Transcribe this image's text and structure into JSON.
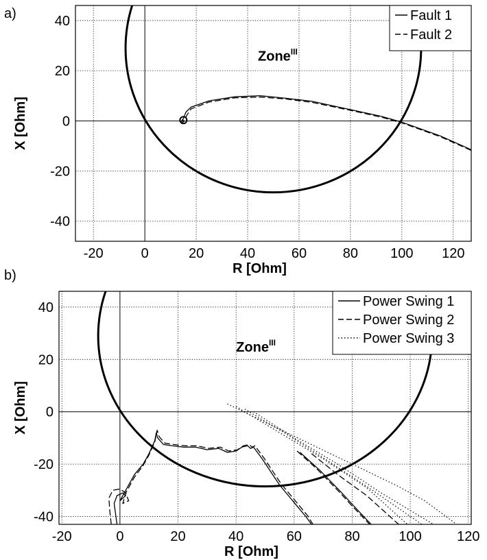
{
  "chart_data": [
    {
      "panel_label": "a)",
      "type": "line",
      "xlabel": "R [Ohm]",
      "ylabel": "X [Ohm]",
      "xlim": [
        -27,
        127
      ],
      "ylim": [
        -48,
        46
      ],
      "xticks": [
        -20,
        0,
        20,
        40,
        60,
        80,
        100,
        120
      ],
      "yticks": [
        -40,
        -20,
        0,
        20,
        40
      ],
      "grid": true,
      "legend_position": "top-right",
      "zone_label": {
        "text": "Zone",
        "superscript": "III",
        "x": 44,
        "y": 24
      },
      "zone_circle": {
        "center_r": 50,
        "center_x": 29,
        "radius": 57.5
      },
      "series": [
        {
          "name": "Fault 1",
          "style": "solid",
          "x": [
            127,
            115,
            100,
            92,
            80,
            65,
            55,
            45,
            35,
            25,
            18,
            16,
            15,
            14,
            15
          ],
          "y": [
            -11.5,
            -6,
            -0.5,
            1.8,
            4.5,
            7.8,
            9,
            10,
            9.6,
            8,
            5.5,
            3.5,
            1,
            -0.5,
            0.5
          ]
        },
        {
          "name": "Fault 2",
          "style": "dashed",
          "x": [
            127,
            115,
            100,
            92,
            80,
            65,
            55,
            45,
            35,
            25,
            18,
            16.5,
            15.5,
            14.5,
            15.5
          ],
          "y": [
            -11.8,
            -6.3,
            -0.8,
            1.5,
            4.2,
            7.4,
            8.7,
            9.5,
            9.2,
            7.5,
            4.8,
            2.5,
            0.5,
            -0.8,
            0
          ]
        }
      ]
    },
    {
      "panel_label": "b)",
      "type": "line",
      "xlabel": "R [Ohm]",
      "ylabel": "X [Ohm]",
      "xlim": [
        -21,
        121
      ],
      "ylim": [
        -43,
        46
      ],
      "xticks": [
        -20,
        0,
        20,
        40,
        60,
        80,
        100,
        120
      ],
      "yticks": [
        -40,
        -20,
        0,
        20,
        40
      ],
      "grid": true,
      "legend_position": "top-right",
      "zone_label": {
        "text": "Zone",
        "superscript": "III",
        "x": 40,
        "y": 23
      },
      "zone_circle": {
        "center_r": 50,
        "center_x": 29,
        "radius": 57.5
      },
      "series": [
        {
          "name": "Power Swing 1",
          "style": "solid",
          "x": [
            -1,
            -1.5,
            -2,
            -1,
            1,
            2,
            1,
            0,
            2,
            5,
            8,
            10,
            12,
            12.5,
            13,
            15,
            18,
            22,
            26,
            30,
            34,
            37,
            40,
            42,
            44,
            45,
            46,
            47,
            49,
            52,
            55,
            58,
            61,
            64,
            66
          ],
          "y": [
            -43,
            -39,
            -35,
            -32,
            -31,
            -32,
            -33,
            -34,
            -30,
            -24,
            -20,
            -16,
            -11,
            -8,
            -10,
            -12.5,
            -13,
            -13.5,
            -13.5,
            -14.5,
            -14,
            -15.5,
            -15,
            -13.5,
            -13,
            -14,
            -13.5,
            -15,
            -18,
            -23,
            -28,
            -32,
            -36,
            -40,
            -43
          ]
        },
        {
          "name": "Power Swing 2",
          "style": "dashed",
          "x": [
            -3,
            -3.5,
            -3.8,
            -2.5,
            0,
            2,
            3,
            1,
            2,
            5,
            8,
            10,
            12,
            12.8,
            13.5,
            15.5,
            18.5,
            22.5,
            26.5,
            30.5,
            34.5,
            37.5,
            40.5,
            42.5,
            44.5,
            45.5,
            46.5,
            47.5,
            49.5,
            52.5,
            55.5,
            58.5,
            61.5,
            64.5,
            66.5
          ],
          "y": [
            -43,
            -38,
            -33,
            -30,
            -29.5,
            -31,
            -34,
            -35,
            -31,
            -25,
            -20.5,
            -16.5,
            -11.5,
            -7,
            -9.5,
            -12,
            -12.5,
            -13,
            -13,
            -14,
            -13.5,
            -15,
            -14.5,
            -13,
            -12.5,
            -13.5,
            -13,
            -14.5,
            -17.5,
            -22.5,
            -27.5,
            -31.5,
            -35.5,
            -39.5,
            -43
          ]
        },
        {
          "name": "Power Swing 3",
          "style": "dotted",
          "x": [
            37,
            50,
            65,
            80,
            95,
            105,
            116
          ],
          "y": [
            3,
            -4,
            -12,
            -20,
            -28,
            -34,
            -43
          ]
        }
      ],
      "extra_traces": [
        {
          "style": "dashed",
          "x": [
            61,
            68,
            75,
            80,
            86
          ],
          "y": [
            -15,
            -22,
            -30,
            -36,
            -43
          ]
        },
        {
          "style": "solid",
          "x": [
            62,
            69,
            76,
            81,
            86.5
          ],
          "y": [
            -15.5,
            -22.5,
            -30.5,
            -36.5,
            -43
          ]
        },
        {
          "style": "dashed",
          "x": [
            66,
            75,
            85,
            91,
            96
          ],
          "y": [
            -16,
            -24,
            -32,
            -38,
            -43
          ]
        },
        {
          "style": "dotted",
          "x": [
            40,
            55,
            70,
            85,
            99
          ],
          "y": [
            2,
            -8,
            -18,
            -29,
            -43
          ]
        },
        {
          "style": "dotted",
          "x": [
            43,
            58,
            72,
            87,
            104
          ],
          "y": [
            1,
            -9,
            -19,
            -30,
            -43
          ]
        },
        {
          "style": "dotted",
          "x": [
            46,
            60,
            75,
            90,
            108
          ],
          "y": [
            0,
            -10,
            -20,
            -31,
            -43
          ]
        }
      ]
    }
  ]
}
